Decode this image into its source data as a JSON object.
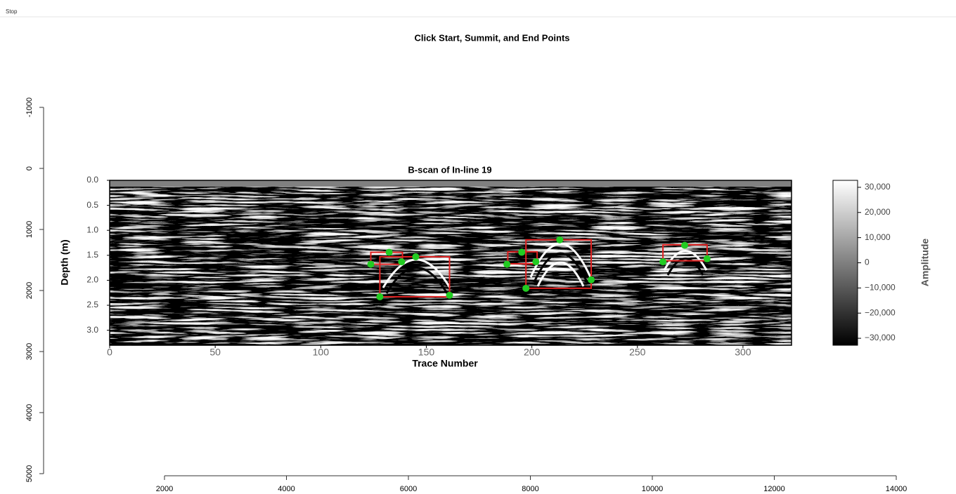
{
  "toolbar": {
    "button": "Stop"
  },
  "window_title": "Click Start, Summit, and End Points",
  "outer_axes": {
    "xlim": [
      2000,
      14000
    ],
    "xticks": [
      2000,
      4000,
      6000,
      8000,
      10000,
      12000,
      14000
    ],
    "ylim": [
      -1000,
      5000
    ],
    "yticks": [
      -1000,
      0,
      1000,
      2000,
      3000,
      4000,
      5000
    ]
  },
  "bscan": {
    "title": "B-scan of In-line 19",
    "xlabel": "Trace Number",
    "ylabel": "Depth (m)",
    "xlim": [
      0,
      323
    ],
    "xticks": [
      0,
      50,
      100,
      150,
      200,
      250,
      300
    ],
    "ylim": [
      0,
      3.3
    ],
    "yticks": [
      {
        "value": 0,
        "label": "0.0"
      },
      0.5,
      {
        "value": 1,
        "label": "1.0"
      },
      1.5,
      {
        "value": 2,
        "label": "2.0"
      },
      2.5,
      {
        "value": 3,
        "label": "3.0"
      }
    ],
    "colorbar": {
      "label": "Amplitude",
      "lim": [
        -32768,
        32767
      ],
      "ticks": [
        {
          "value": 30000,
          "label": "30,000"
        },
        {
          "value": 20000,
          "label": "20,000"
        },
        {
          "value": 10000,
          "label": "10,000"
        },
        0,
        {
          "value": -10000,
          "label": "−10,000"
        },
        {
          "value": -20000,
          "label": "−20,000"
        },
        {
          "value": -30000,
          "label": "−30,000"
        }
      ]
    },
    "box_color": "#e02020",
    "point_color": "#22cc22",
    "boxes": [
      {
        "x": [
          123.7,
          138.7
        ],
        "y": [
          1.44,
          1.68
        ]
      },
      {
        "x": [
          128.0,
          161.0
        ],
        "y": [
          1.53,
          2.33
        ]
      },
      {
        "x": [
          188.6,
          202.5
        ],
        "y": [
          1.43,
          1.67
        ]
      },
      {
        "x": [
          197.2,
          228.1
        ],
        "y": [
          1.19,
          2.16
        ]
      },
      {
        "x": [
          262.1,
          283.0
        ],
        "y": [
          1.29,
          1.61
        ]
      }
    ],
    "points": {
      "x": [
        123.7,
        132.4,
        138.3,
        145.0,
        128.0,
        161.0,
        188.2,
        195.2,
        201.9,
        197.2,
        213.2,
        228.1,
        262.1,
        272.4,
        283.0
      ],
      "y": [
        1.68,
        1.44,
        1.63,
        1.53,
        2.33,
        2.3,
        1.68,
        1.44,
        1.63,
        2.16,
        1.19,
        1.99,
        1.63,
        1.3,
        1.57
      ]
    }
  }
}
